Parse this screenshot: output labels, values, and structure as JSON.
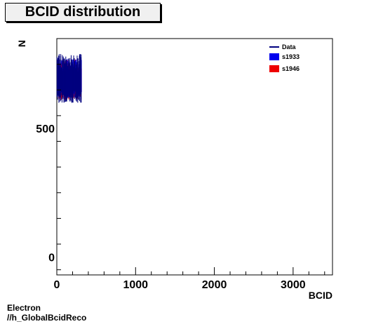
{
  "chart_data": {
    "type": "bar",
    "title": "BCID distribution",
    "xlabel": "BCID",
    "ylabel": "N",
    "xlim": [
      0,
      3500
    ],
    "ylim": [
      -70,
      850
    ],
    "x_ticks": [
      0,
      1000,
      2000,
      3000
    ],
    "x_tick_labels": [
      "0",
      "1000",
      "2000",
      "3000"
    ],
    "y_ticks": [
      0,
      500
    ],
    "y_tick_labels": [
      "0",
      "500"
    ],
    "grid": false,
    "legend_placement": "top-right",
    "x_data_range": [
      0,
      310
    ],
    "series": [
      {
        "name": "Data",
        "kind": "line",
        "color": "#00007f",
        "level": 690,
        "spread": [
          600,
          790
        ]
      },
      {
        "name": "s1933",
        "kind": "fill",
        "color": "#0000ee",
        "level": 690,
        "spread": [
          620,
          770
        ]
      },
      {
        "name": "s1946",
        "kind": "fill",
        "color": "#ee0000",
        "level": 690,
        "spread": [
          610,
          770
        ]
      }
    ]
  },
  "footer": {
    "line1": "Electron",
    "line2": "//h_GlobalBcidReco"
  }
}
